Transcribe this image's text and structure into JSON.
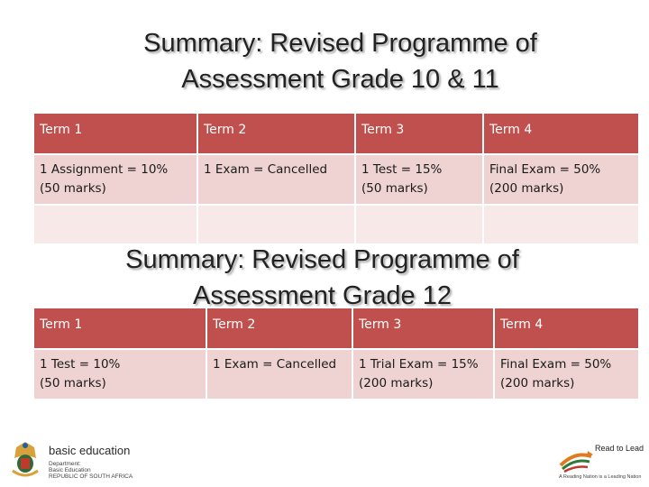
{
  "title1_line1": "Summary: Revised Programme of",
  "title1_line2": "Assessment Grade 10 & 11",
  "table1": {
    "headers": [
      "Term 1",
      "Term 2",
      "Term 3",
      "Term 4"
    ],
    "row1": [
      {
        "line1": "1 Assignment = 10%",
        "line2": "(50 marks)"
      },
      {
        "line1": "1 Exam = Cancelled",
        "line2": ""
      },
      {
        "line1": "1 Test = 15%",
        "line2": "(50 marks)"
      },
      {
        "line1": "Final Exam = 50%",
        "line2": "(200 marks)"
      }
    ]
  },
  "title2_line1": "Summary: Revised Programme of",
  "title2_line2": "Assessment Grade 12",
  "table2": {
    "headers": [
      "Term 1",
      "Term 2",
      "Term 3",
      "Term 4"
    ],
    "row1": [
      {
        "line1": "1 Test = 10%",
        "line2": "(50 marks)"
      },
      {
        "line1": "1 Exam = Cancelled",
        "line2": ""
      },
      {
        "line1": "1 Trial Exam = 15%",
        "line2": "(200 marks)"
      },
      {
        "line1": "Final Exam = 50%",
        "line2": "(200 marks)"
      }
    ]
  },
  "footer": {
    "left_logo_title": "basic education",
    "left_logo_sub1": "Department:",
    "left_logo_sub2": "Basic Education",
    "left_logo_sub3": "REPUBLIC OF SOUTH AFRICA",
    "right_logo_title": "Read to Lead",
    "right_logo_tagline": "A Reading Nation is a Leading Nation"
  },
  "colors": {
    "header_fill": "#c0504d",
    "body_fill": "#efd3d2",
    "empty_fill": "#f7e9e8"
  },
  "icons": [
    "coat-of-arms-icon",
    "book-icon"
  ]
}
